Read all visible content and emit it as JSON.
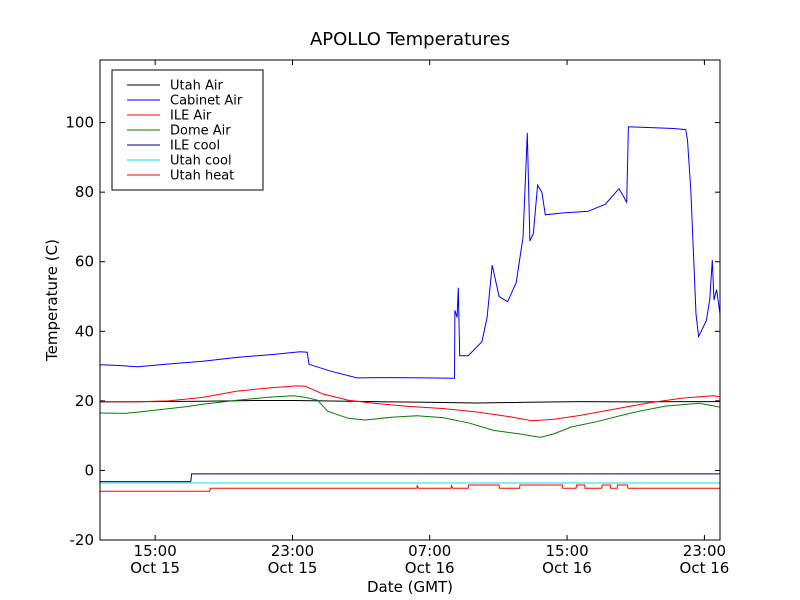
{
  "chart_data": {
    "type": "line",
    "title": "APOLLO Temperatures",
    "xlabel": "Date (GMT)",
    "ylabel": "Temperature (C)",
    "x_unit": "hours since Oct 15 11:45 GMT",
    "xlim": [
      0,
      36.2
    ],
    "ylim": [
      -20,
      118
    ],
    "yticks": [
      -20,
      0,
      20,
      40,
      60,
      80,
      100
    ],
    "ytick_labels": [
      "-20",
      "0",
      "20",
      "40",
      "60",
      "80",
      "100"
    ],
    "xticks": [
      {
        "x": 3.22,
        "time": "15:00",
        "date": "Oct 15"
      },
      {
        "x": 11.24,
        "time": "23:00",
        "date": "Oct 15"
      },
      {
        "x": 19.25,
        "time": "07:00",
        "date": "Oct 16"
      },
      {
        "x": 27.27,
        "time": "15:00",
        "date": "Oct 16"
      },
      {
        "x": 35.29,
        "time": "23:00",
        "date": "Oct 16"
      }
    ],
    "legend_position": "top-left",
    "series": [
      {
        "name": "Utah Air",
        "color": "#000000",
        "points": [
          [
            0,
            19.7
          ],
          [
            3,
            19.8
          ],
          [
            6,
            19.9
          ],
          [
            9,
            20.1
          ],
          [
            11.3,
            20.1
          ],
          [
            13,
            20.0
          ],
          [
            16,
            19.8
          ],
          [
            19,
            19.6
          ],
          [
            22,
            19.4
          ],
          [
            25,
            19.6
          ],
          [
            28,
            19.8
          ],
          [
            31,
            19.7
          ],
          [
            34,
            19.8
          ],
          [
            36.2,
            19.8
          ]
        ]
      },
      {
        "name": "Cabinet Air",
        "color": "#0000ff",
        "points": [
          [
            0,
            30.4
          ],
          [
            1,
            30.2
          ],
          [
            2.2,
            29.8
          ],
          [
            4,
            30.6
          ],
          [
            6,
            31.4
          ],
          [
            8,
            32.5
          ],
          [
            10,
            33.3
          ],
          [
            11.7,
            34.1
          ],
          [
            12.1,
            34.0
          ],
          [
            12.2,
            30.5
          ],
          [
            13.5,
            28.5
          ],
          [
            15,
            26.6
          ],
          [
            17,
            26.7
          ],
          [
            19,
            26.6
          ],
          [
            20.7,
            26.5
          ],
          [
            20.72,
            46.0
          ],
          [
            20.85,
            44.0
          ],
          [
            20.92,
            52.5
          ],
          [
            21.0,
            33.0
          ],
          [
            21.5,
            33.0
          ],
          [
            22.3,
            37.0
          ],
          [
            22.6,
            44.0
          ],
          [
            22.9,
            59.0
          ],
          [
            23.3,
            50.0
          ],
          [
            23.8,
            48.5
          ],
          [
            24.3,
            54.0
          ],
          [
            24.7,
            67.0
          ],
          [
            24.85,
            85.0
          ],
          [
            24.95,
            97.0
          ],
          [
            25.1,
            66.0
          ],
          [
            25.3,
            68.0
          ],
          [
            25.55,
            82.0
          ],
          [
            25.8,
            80.0
          ],
          [
            26.0,
            73.5
          ],
          [
            27,
            74.0
          ],
          [
            28.5,
            74.5
          ],
          [
            29.5,
            76.5
          ],
          [
            30.3,
            81.0
          ],
          [
            30.6,
            78.5
          ],
          [
            30.75,
            77.0
          ],
          [
            30.85,
            98.8
          ],
          [
            33.5,
            98.3
          ],
          [
            34.2,
            98.0
          ],
          [
            34.3,
            95.0
          ],
          [
            34.5,
            80.0
          ],
          [
            34.8,
            45.0
          ],
          [
            34.95,
            38.5
          ],
          [
            35.4,
            43.0
          ],
          [
            35.6,
            49.0
          ],
          [
            35.75,
            60.5
          ],
          [
            35.85,
            49.0
          ],
          [
            36.0,
            52.0
          ],
          [
            36.2,
            45.0
          ]
        ]
      },
      {
        "name": "ILE Air",
        "color": "#ff0000",
        "points": [
          [
            0,
            19.8
          ],
          [
            2,
            19.7
          ],
          [
            4,
            20.0
          ],
          [
            6,
            21.0
          ],
          [
            8,
            22.8
          ],
          [
            10,
            23.8
          ],
          [
            11.5,
            24.3
          ],
          [
            12,
            24.2
          ],
          [
            13,
            22.0
          ],
          [
            14.5,
            20.2
          ],
          [
            16,
            19.3
          ],
          [
            18,
            18.4
          ],
          [
            20,
            17.8
          ],
          [
            22,
            16.8
          ],
          [
            24,
            15.4
          ],
          [
            25.2,
            14.3
          ],
          [
            26.5,
            14.7
          ],
          [
            28,
            15.8
          ],
          [
            30,
            17.6
          ],
          [
            32,
            19.4
          ],
          [
            34,
            20.8
          ],
          [
            35.8,
            21.5
          ],
          [
            36.2,
            21.2
          ]
        ]
      },
      {
        "name": "Dome Air",
        "color": "#008000",
        "points": [
          [
            0,
            16.5
          ],
          [
            1.5,
            16.4
          ],
          [
            3,
            17.2
          ],
          [
            5,
            18.3
          ],
          [
            6,
            19.0
          ],
          [
            8,
            20.2
          ],
          [
            10,
            21.1
          ],
          [
            11.3,
            21.5
          ],
          [
            12,
            21.0
          ],
          [
            12.7,
            20.2
          ],
          [
            13.3,
            17.0
          ],
          [
            14.5,
            15.0
          ],
          [
            15.5,
            14.5
          ],
          [
            17,
            15.3
          ],
          [
            18.5,
            15.7
          ],
          [
            20,
            15.2
          ],
          [
            21.5,
            13.7
          ],
          [
            23,
            11.5
          ],
          [
            24.5,
            10.5
          ],
          [
            25.7,
            9.5
          ],
          [
            26.5,
            10.5
          ],
          [
            27.5,
            12.5
          ],
          [
            29,
            14.0
          ],
          [
            31,
            16.5
          ],
          [
            33,
            18.5
          ],
          [
            35,
            19.3
          ],
          [
            36.2,
            18.2
          ]
        ]
      },
      {
        "name": "ILE cool",
        "color": "#000080",
        "points": [
          [
            0,
            -3.2
          ],
          [
            5.3,
            -3.2
          ],
          [
            5.35,
            -1.0
          ],
          [
            36.2,
            -1.0
          ]
        ]
      },
      {
        "name": "Utah cool",
        "color": "#00e5ee",
        "points": [
          [
            0,
            -3.6
          ],
          [
            36.2,
            -3.6
          ]
        ]
      },
      {
        "name": "Utah heat",
        "color": "#ff0000",
        "points": [
          [
            0,
            -6.0
          ],
          [
            6.4,
            -6.0
          ],
          [
            6.45,
            -5.1
          ],
          [
            18.5,
            -5.1
          ],
          [
            18.52,
            -4.4
          ],
          [
            18.6,
            -5.1
          ],
          [
            20.5,
            -5.1
          ],
          [
            20.52,
            -4.4
          ],
          [
            20.6,
            -5.1
          ],
          [
            21.5,
            -5.1
          ],
          [
            21.52,
            -4.2
          ],
          [
            23.3,
            -4.2
          ],
          [
            23.32,
            -5.1
          ],
          [
            24.5,
            -5.1
          ],
          [
            24.52,
            -4.2
          ],
          [
            27.0,
            -4.2
          ],
          [
            27.02,
            -5.1
          ],
          [
            27.8,
            -5.1
          ],
          [
            27.82,
            -4.2
          ],
          [
            28.3,
            -4.2
          ],
          [
            28.32,
            -5.1
          ],
          [
            29.3,
            -5.1
          ],
          [
            29.32,
            -4.2
          ],
          [
            29.8,
            -4.2
          ],
          [
            29.82,
            -5.1
          ],
          [
            30.2,
            -5.1
          ],
          [
            30.22,
            -4.2
          ],
          [
            30.8,
            -4.2
          ],
          [
            30.82,
            -5.1
          ],
          [
            36.2,
            -5.1
          ]
        ]
      }
    ]
  }
}
